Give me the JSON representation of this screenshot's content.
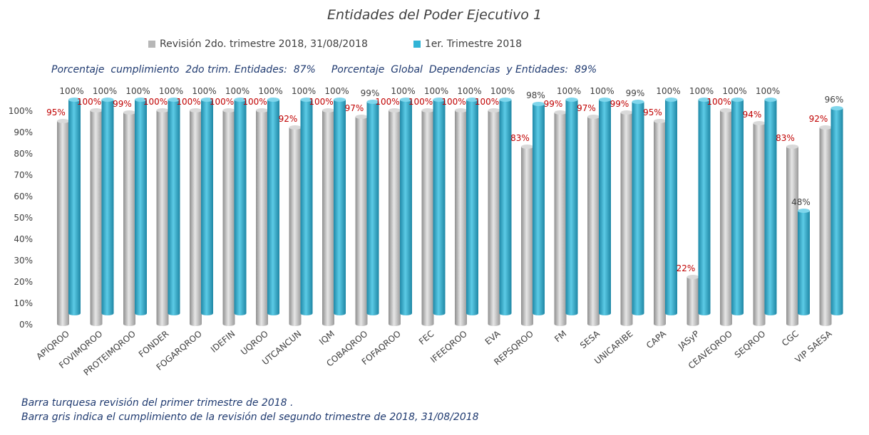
{
  "chart_data": {
    "type": "bar",
    "title": "Entidades del Poder Ejecutivo 1",
    "categories": [
      "APIQROO",
      "FOVIMQROO",
      "PROTEIMQROO",
      "FONDER",
      "FOGARQROO",
      "IDEFIN",
      "UQROO",
      "UTCANCUN",
      "IQM",
      "COBAQROO",
      "FOFAQROO",
      "FEC",
      "IFEEQROO",
      "EVA",
      "REPSQROO",
      "FM",
      "SESA",
      "UNICARIBE",
      "CAPA",
      "JASyP",
      "CEAVEQROO",
      "SEQROO",
      "CGC",
      "VIP SAESA"
    ],
    "series": [
      {
        "name": "Revisión 2do. trimestre 2018, 31/08/2018",
        "color": "#b7b7b7",
        "label_color": "#c00000",
        "values": [
          95,
          100,
          99,
          100,
          100,
          100,
          100,
          92,
          100,
          97,
          100,
          100,
          100,
          100,
          83,
          99,
          97,
          99,
          95,
          22,
          100,
          94,
          83,
          92
        ]
      },
      {
        "name": "1er. Trimestre 2018",
        "color": "#31b4d6",
        "label_color": "#404040",
        "values": [
          100,
          100,
          100,
          100,
          100,
          100,
          100,
          100,
          100,
          99,
          100,
          100,
          100,
          100,
          98,
          100,
          100,
          99,
          100,
          100,
          100,
          100,
          48,
          96
        ]
      }
    ],
    "ylim": [
      0,
      100
    ],
    "yticks": [
      "0%",
      "10%",
      "20%",
      "30%",
      "40%",
      "50%",
      "60%",
      "70%",
      "80%",
      "90%",
      "100%"
    ],
    "grid": false,
    "legend": "top"
  },
  "subtitle": {
    "left": "Porcentaje  cumplimiento  2do trim. Entidades:  87%",
    "right": "Porcentaje  Global  Dependencias  y Entidades:  89%"
  },
  "footnotes": [
    "Barra turquesa  revisión  del  primer  trimestre  de  2018 .",
    "Barra gris indica el cumplimiento  de la revisión  del  segundo  trimestre  de 2018,  31/08/2018"
  ]
}
